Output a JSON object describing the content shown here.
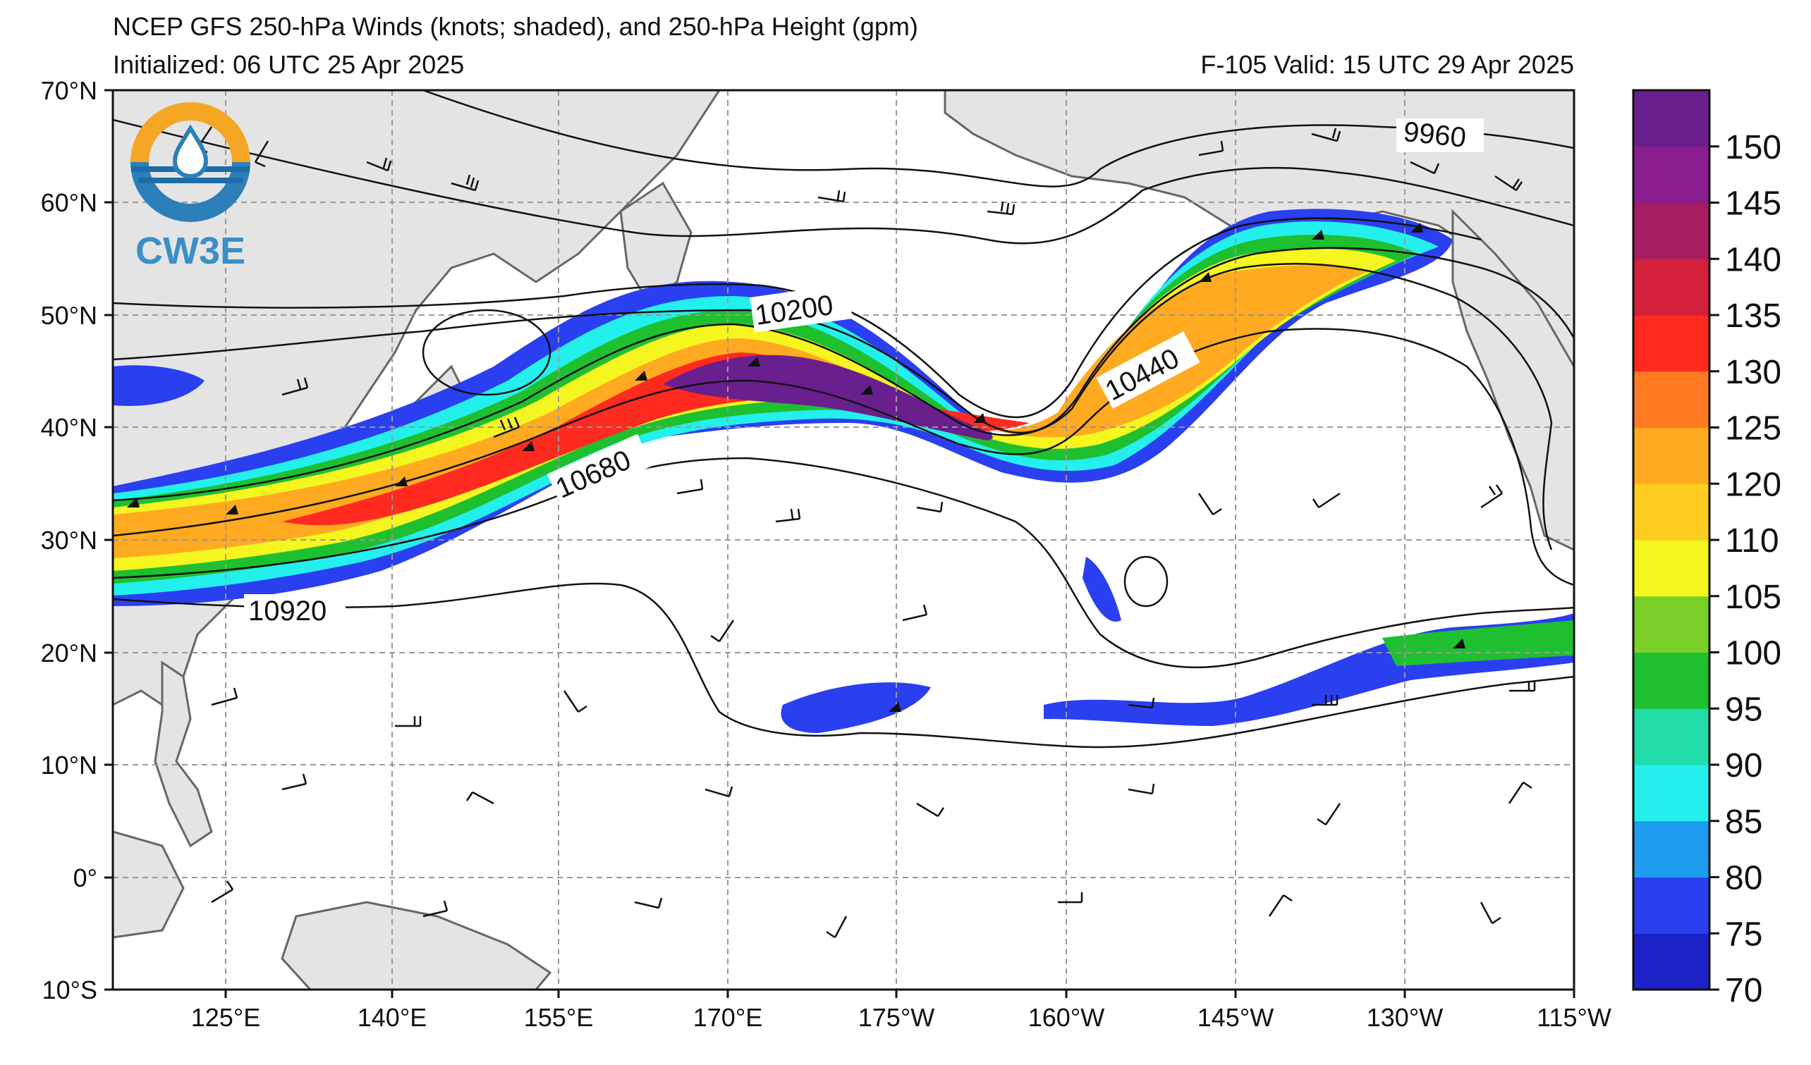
{
  "header": {
    "title": "NCEP GFS 250-hPa Winds (knots; shaded), and 250-hPa Height (gpm)",
    "initialized": "Initialized: 06 UTC 25 Apr 2025",
    "valid": "F-105  Valid: 15 UTC 29 Apr 2025"
  },
  "logo": {
    "text": "CW3E",
    "colors": [
      "#f5a623",
      "#2c7fb8",
      "#1b6ca8"
    ]
  },
  "map": {
    "lat_labels": [
      "70°N",
      "60°N",
      "50°N",
      "40°N",
      "30°N",
      "20°N",
      "10°N",
      "0°",
      "10°S"
    ],
    "lon_labels": [
      "125°E",
      "140°E",
      "155°E",
      "170°E",
      "175°W",
      "160°W",
      "145°W",
      "130°W",
      "115°W"
    ],
    "contour_labels": [
      "9960",
      "10200",
      "10440",
      "10680",
      "10920"
    ],
    "land_color": "#e4e4e4",
    "coast_color": "#666666",
    "contour_color": "#111111",
    "grid_color": "#999999"
  },
  "colorbar": {
    "ticks": [
      "150",
      "145",
      "140",
      "135",
      "130",
      "125",
      "120",
      "110",
      "105",
      "100",
      "95",
      "90",
      "85",
      "80",
      "75",
      "70"
    ],
    "colors": [
      "#1a22c8",
      "#2a3ff0",
      "#1d9cf0",
      "#23f0ec",
      "#1fdca8",
      "#1ec030",
      "#7ad028",
      "#f5f520",
      "#ffcc20",
      "#ffaa20",
      "#ff7a20",
      "#ff2a20",
      "#d4203a",
      "#a81c62",
      "#8a1e8e",
      "#6a1f8f"
    ]
  }
}
